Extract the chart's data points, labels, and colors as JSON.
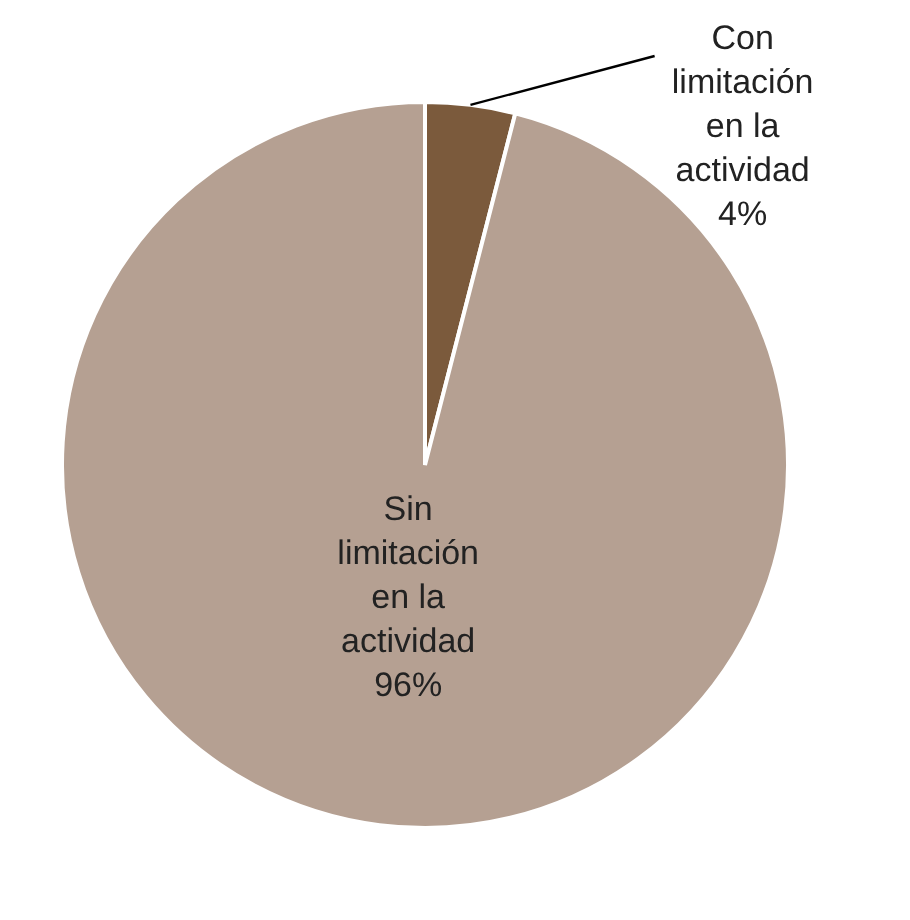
{
  "chart_data": {
    "type": "pie",
    "categories": [
      "Con limitación en la actividad",
      "Sin limitación en la actividad"
    ],
    "values": [
      4,
      96
    ],
    "colors": [
      "#7b5a3c",
      "#b5a092"
    ],
    "value_labels": [
      "4%",
      "96%"
    ],
    "legend": false
  }
}
